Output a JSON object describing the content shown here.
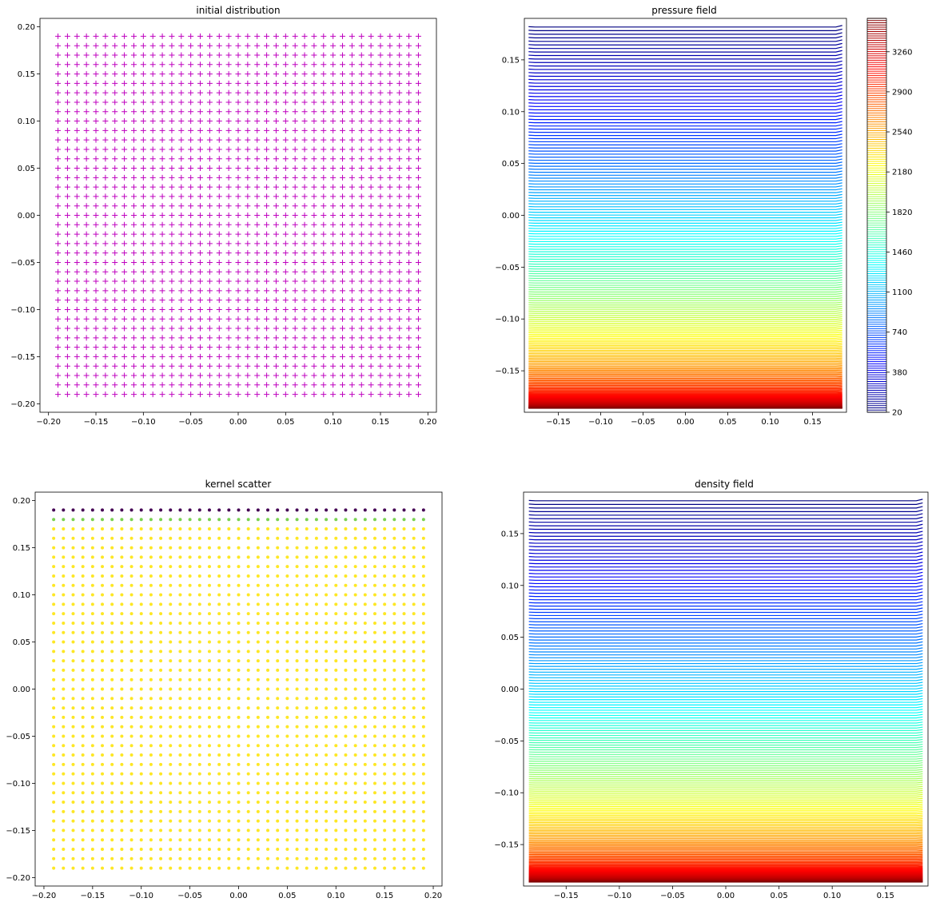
{
  "chart_data": [
    {
      "type": "scatter",
      "title": "initial distribution",
      "xlabel": "",
      "ylabel": "",
      "marker": "+",
      "color": "#bf00bf",
      "xlim": [
        -0.209,
        0.209
      ],
      "ylim": [
        -0.209,
        0.209
      ],
      "x_ticks": [
        -0.2,
        -0.15,
        -0.1,
        -0.05,
        0.0,
        0.05,
        0.1,
        0.15,
        0.2
      ],
      "x_tick_labels": [
        "−0.20",
        "−0.15",
        "−0.10",
        "−0.05",
        "0.00",
        "0.05",
        "0.10",
        "0.15",
        "0.20"
      ],
      "y_ticks": [
        -0.2,
        -0.15,
        -0.1,
        -0.05,
        0.0,
        0.05,
        0.1,
        0.15,
        0.2
      ],
      "y_tick_labels": [
        "−0.20",
        "−0.15",
        "−0.10",
        "−0.05",
        "0.00",
        "0.05",
        "0.10",
        "0.15",
        "0.20"
      ],
      "grid_points": {
        "min": -0.19,
        "max": 0.19,
        "step": 0.01,
        "count_per_axis": 39
      },
      "grid": false
    },
    {
      "type": "contour",
      "title": "pressure field",
      "xlabel": "",
      "ylabel": "",
      "colormap": "jet",
      "xlim": [
        -0.19,
        0.19
      ],
      "ylim": [
        -0.19,
        0.19
      ],
      "x_ticks": [
        -0.15,
        -0.1,
        -0.05,
        0.0,
        0.05,
        0.1,
        0.15
      ],
      "x_tick_labels": [
        "−0.15",
        "−0.10",
        "−0.05",
        "0.00",
        "0.05",
        "0.10",
        "0.15"
      ],
      "y_ticks": [
        -0.15,
        -0.1,
        -0.05,
        0.0,
        0.05,
        0.1,
        0.15
      ],
      "y_tick_labels": [
        "−0.15",
        "−0.10",
        "−0.05",
        "0.00",
        "0.05",
        "0.10",
        "0.15"
      ],
      "levels": {
        "min": 20,
        "max": 3560,
        "count": 180
      },
      "colorbar_ticks": [
        20,
        380,
        740,
        1100,
        1460,
        1820,
        2180,
        2540,
        2900,
        3260
      ],
      "colorbar_tick_labels": [
        "20",
        "380",
        "740",
        "1100",
        "1460",
        "1820",
        "2180",
        "2540",
        "2900",
        "3260"
      ],
      "grid": false
    },
    {
      "type": "scatter",
      "title": "kernel scatter",
      "xlabel": "",
      "ylabel": "",
      "marker": "o",
      "xlim": [
        -0.209,
        0.209
      ],
      "ylim": [
        -0.209,
        0.209
      ],
      "x_ticks": [
        -0.2,
        -0.15,
        -0.1,
        -0.05,
        0.0,
        0.05,
        0.1,
        0.15,
        0.2
      ],
      "x_tick_labels": [
        "−0.20",
        "−0.15",
        "−0.10",
        "−0.05",
        "0.00",
        "0.05",
        "0.10",
        "0.15",
        "0.20"
      ],
      "y_ticks": [
        -0.2,
        -0.15,
        -0.1,
        -0.05,
        0.0,
        0.05,
        0.1,
        0.15,
        0.2
      ],
      "y_tick_labels": [
        "−0.20",
        "−0.15",
        "−0.10",
        "−0.05",
        "0.00",
        "0.05",
        "0.10",
        "0.15",
        "0.20"
      ],
      "grid_points": {
        "min": -0.19,
        "max": 0.19,
        "step": 0.01,
        "count_per_axis": 39
      },
      "row_colors": [
        {
          "y": 0.19,
          "color": "#440154"
        },
        {
          "y": 0.18,
          "color": "#7ad151"
        },
        {
          "y": "other",
          "color": "#fde725"
        }
      ],
      "grid": false
    },
    {
      "type": "contour",
      "title": "density field",
      "xlabel": "",
      "ylabel": "",
      "colormap": "jet",
      "xlim": [
        -0.19,
        0.19
      ],
      "ylim": [
        -0.19,
        0.19
      ],
      "x_ticks": [
        -0.15,
        -0.1,
        -0.05,
        0.0,
        0.05,
        0.1,
        0.15
      ],
      "x_tick_labels": [
        "−0.15",
        "−0.10",
        "−0.05",
        "0.00",
        "0.05",
        "0.10",
        "0.15"
      ],
      "y_ticks": [
        -0.15,
        -0.1,
        -0.05,
        0.0,
        0.05,
        0.1,
        0.15
      ],
      "y_tick_labels": [
        "−0.15",
        "−0.10",
        "−0.05",
        "0.00",
        "0.05",
        "0.10",
        "0.15"
      ],
      "levels": {
        "count": 180
      },
      "grid": false
    }
  ]
}
